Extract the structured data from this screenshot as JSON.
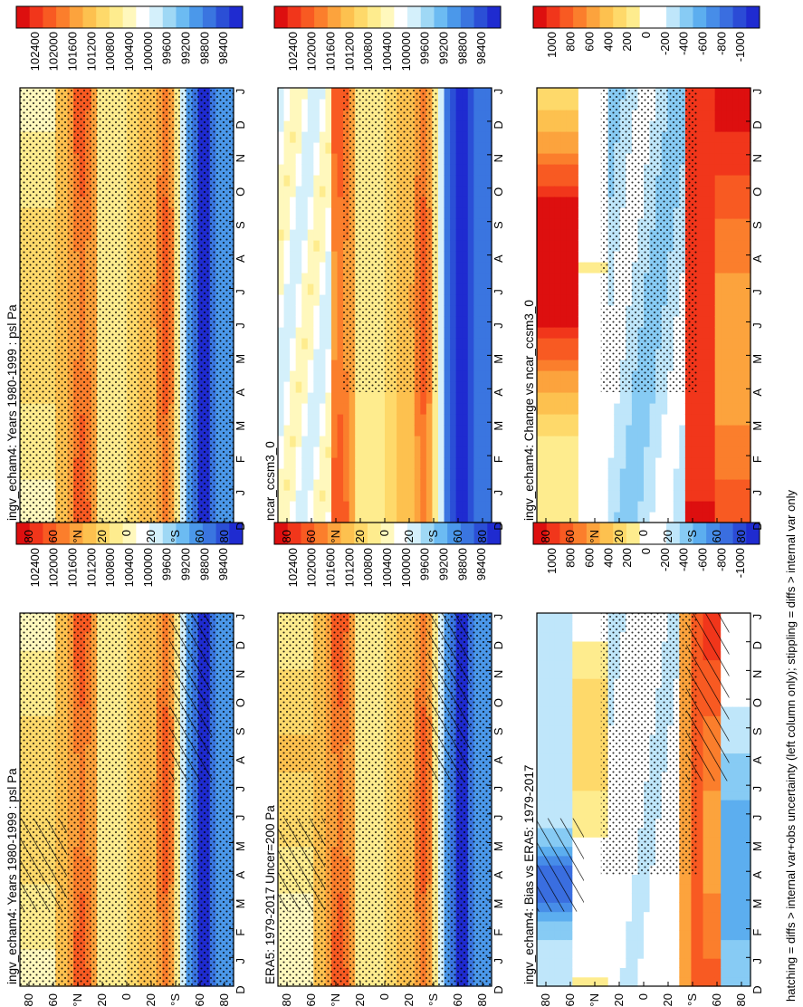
{
  "footer": "hatching = diffs > internal var+obs uncertainty (left column only); stippling = diffs > internal var only",
  "month_labels": [
    "D",
    "J",
    "F",
    "M",
    "A",
    "M",
    "J",
    "J",
    "A",
    "S",
    "O",
    "N",
    "D",
    "J"
  ],
  "lat_labels": [
    "80",
    "60",
    "°N",
    "20",
    "0",
    "20",
    "°S",
    "60",
    "80"
  ],
  "chart_data": [
    {
      "type": "heatmap",
      "id": "p_tl",
      "title": "ingv_echam4: Years 1980-1999 : psl Pa",
      "colorbar": "abs",
      "hatch": true,
      "stipple": "dense",
      "cmap_kind": "abs"
    },
    {
      "type": "heatmap",
      "id": "p_tr",
      "title": "ingv_echam4: Years 1980-1999 : psl Pa",
      "colorbar": "abs",
      "hatch": false,
      "stipple": "full",
      "cmap_kind": "abs"
    },
    {
      "type": "heatmap",
      "id": "p_ml",
      "title": "ERA5: 1979-2017 Uncer=200 Pa",
      "colorbar": "abs",
      "hatch": true,
      "stipple": "dense",
      "cmap_kind": "abs2"
    },
    {
      "type": "heatmap",
      "id": "p_mr",
      "title": "ncar_ccsm3_0",
      "colorbar": "abs",
      "hatch": false,
      "stipple": "partial",
      "cmap_kind": "abs3"
    },
    {
      "type": "heatmap",
      "id": "p_bl",
      "title": "ingv_echam4: Bias vs ERA5: 1979-2017",
      "colorbar": "diff",
      "hatch": true,
      "stipple": "partial",
      "cmap_kind": "bias"
    },
    {
      "type": "heatmap",
      "id": "p_br",
      "title": "ingv_echam4: Change vs ncar_ccsm3_0",
      "colorbar": "diff",
      "hatch": false,
      "stipple": "partial",
      "cmap_kind": "change"
    }
  ],
  "colorbar_abs": {
    "labels": [
      "102400",
      "102000",
      "101600",
      "101200",
      "100800",
      "100400",
      "100000",
      "99600",
      "99200",
      "98800",
      "98400"
    ],
    "colors": [
      "#dd0f0f",
      "#f1361b",
      "#f85a22",
      "#fb7e2c",
      "#fca33d",
      "#fdc14f",
      "#fed96a",
      "#feec8e",
      "#fff8bd",
      "#ffffff",
      "#d4f0fb",
      "#9fd8f5",
      "#6cbbf2",
      "#4b98ea",
      "#3a75e0",
      "#2b4fd6",
      "#1f2bd0"
    ]
  },
  "colorbar_diff": {
    "labels": [
      "1000",
      "800",
      "600",
      "400",
      "200",
      "0",
      "-200",
      "-400",
      "-600",
      "-800",
      "-1000"
    ],
    "colors": [
      "#dd0f0f",
      "#f1361b",
      "#f85a22",
      "#fb7e2c",
      "#fca33d",
      "#fdc14f",
      "#fed96a",
      "#feec8e",
      "#ffffff",
      "#ffffff",
      "#bfe6fa",
      "#87cbf4",
      "#5caeef",
      "#478de8",
      "#3a6ee0",
      "#2b4bd6",
      "#1f2bd0"
    ]
  }
}
